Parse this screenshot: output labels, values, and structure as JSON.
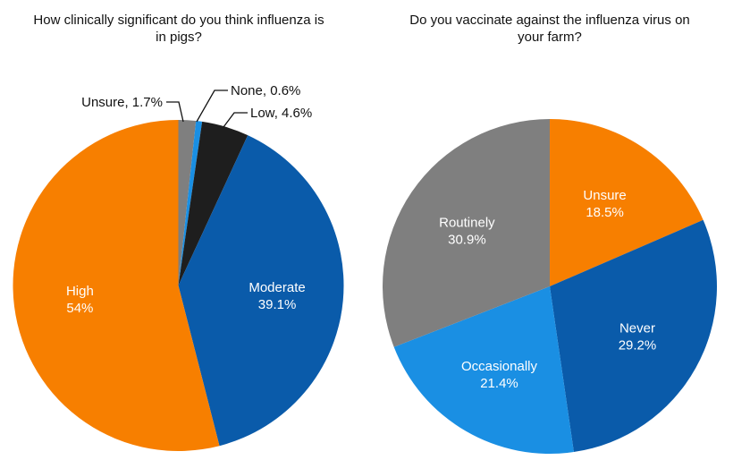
{
  "chart_data": [
    {
      "type": "pie",
      "title": "How clinically significant do you think influenza is in pigs?",
      "slices": [
        {
          "label": "Unsure",
          "value": 1.7,
          "display": "1.7%",
          "color": "#7F7F7F",
          "label_style": "outside"
        },
        {
          "label": "None",
          "value": 0.6,
          "display": "0.6%",
          "color": "#1A8FE3",
          "label_style": "outside"
        },
        {
          "label": "Low",
          "value": 4.6,
          "display": "4.6%",
          "color": "#1E1E1E",
          "label_style": "outside"
        },
        {
          "label": "Moderate",
          "value": 39.1,
          "display": "39.1%",
          "color": "#0A5BAA",
          "label_style": "inside"
        },
        {
          "label": "High",
          "value": 54,
          "display": "54%",
          "color": "#F77F00",
          "label_style": "inside"
        }
      ]
    },
    {
      "type": "pie",
      "title": "Do you vaccinate against the influenza virus on your farm?",
      "slices": [
        {
          "label": "Unsure",
          "value": 18.5,
          "display": "18.5%",
          "color": "#F77F00",
          "label_style": "inside"
        },
        {
          "label": "Never",
          "value": 29.2,
          "display": "29.2%",
          "color": "#0A5BAA",
          "label_style": "inside"
        },
        {
          "label": "Occasionally",
          "value": 21.4,
          "display": "21.4%",
          "color": "#1A8FE3",
          "label_style": "inside"
        },
        {
          "label": "Routinely",
          "value": 30.9,
          "display": "30.9%",
          "color": "#7F7F7F",
          "label_style": "inside"
        }
      ]
    }
  ]
}
